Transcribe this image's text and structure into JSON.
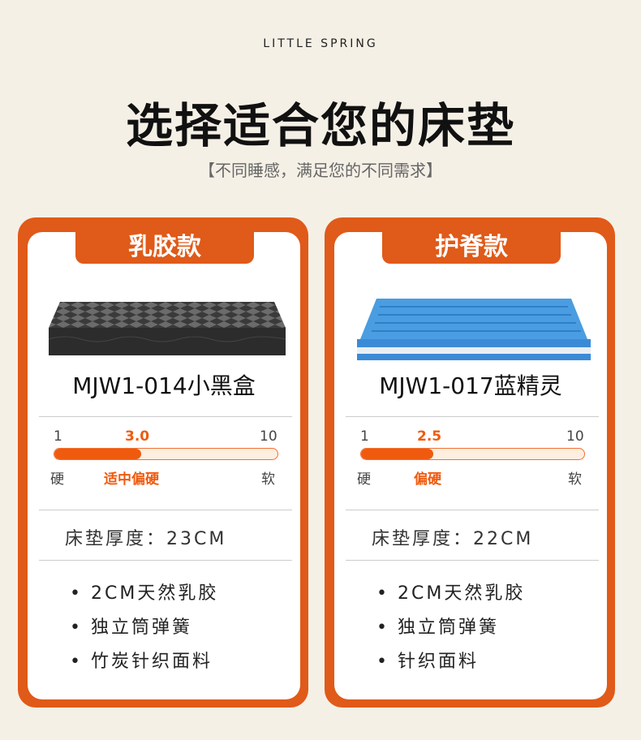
{
  "brand": "LITTLE SPRING",
  "title": "选择适合您的床垫",
  "subtitle": "【不同睡感，满足您的不同需求】",
  "colors": {
    "accent": "#e05a19",
    "highlight": "#f05a0e",
    "background": "#f5f0e6"
  },
  "cards": [
    {
      "tab": "乳胶款",
      "image": "black-mattress",
      "model": "MJW1-014小黑盒",
      "scale": {
        "min": "1",
        "max": "10",
        "value": 3.0,
        "value_label": "3.0",
        "hard": "硬",
        "soft": "软",
        "rating": "适中偏硬"
      },
      "thickness": "床垫厚度：23CM",
      "features": [
        "2CM天然乳胶",
        "独立筒弹簧",
        "竹炭针织面料"
      ]
    },
    {
      "tab": "护脊款",
      "image": "blue-mattress",
      "model": "MJW1-017蓝精灵",
      "scale": {
        "min": "1",
        "max": "10",
        "value": 2.5,
        "value_label": "2.5",
        "hard": "硬",
        "soft": "软",
        "rating": "偏硬"
      },
      "thickness": "床垫厚度：22CM",
      "features": [
        "2CM天然乳胶",
        "独立筒弹簧",
        "针织面料"
      ]
    }
  ]
}
